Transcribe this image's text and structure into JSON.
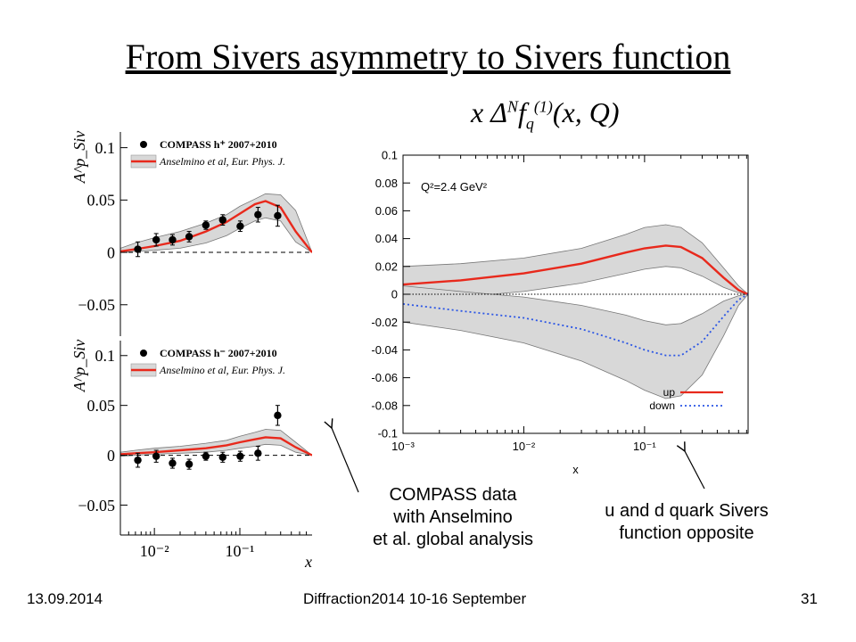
{
  "slide": {
    "title": "From Sivers asymmetry to Sivers function",
    "formula": {
      "lead": "x Δ",
      "sup1": "N",
      "f": "f",
      "sub": "q",
      "sup2": "(1)",
      "args": "(x, Q)"
    },
    "note_left": [
      "COMPASS data",
      "with Anselmino",
      "et al. global analysis"
    ],
    "note_right": [
      "u and d quark Sivers",
      "function opposite"
    ],
    "footer": {
      "date": "13.09.2014",
      "event": "Diffraction2014 10-16 September",
      "page": "31"
    }
  },
  "colors": {
    "theory": "#e8291c",
    "down": "#2a55e5",
    "band": "#d8d8d8"
  },
  "chart_data": [
    {
      "type": "scatter",
      "panel": "top-left",
      "ylabel": "A^p_Siv",
      "xscale": "log",
      "xlim": [
        0.004,
        0.7
      ],
      "ylim": [
        -0.08,
        0.115
      ],
      "yticks": [
        0.1,
        0.05,
        0,
        -0.05
      ],
      "ytick_labels": [
        "0.1",
        "0.05",
        "0",
        "−0.05"
      ],
      "legend": [
        "COMPASS h⁺ 2007+2010",
        "Anselmino et al, Eur. Phys. J."
      ],
      "legend_position": "top",
      "data_points": {
        "x": [
          0.0064,
          0.0105,
          0.0163,
          0.0255,
          0.04,
          0.063,
          0.101,
          0.163,
          0.277
        ],
        "y": [
          0.003,
          0.012,
          0.012,
          0.015,
          0.026,
          0.031,
          0.025,
          0.036,
          0.035
        ],
        "err": [
          0.007,
          0.006,
          0.005,
          0.005,
          0.004,
          0.005,
          0.005,
          0.007,
          0.01
        ]
      },
      "theory_curve": {
        "x": [
          0.004,
          0.006,
          0.01,
          0.02,
          0.04,
          0.07,
          0.1,
          0.15,
          0.2,
          0.3,
          0.45,
          0.7
        ],
        "y": [
          0.001,
          0.003,
          0.006,
          0.011,
          0.02,
          0.029,
          0.037,
          0.046,
          0.049,
          0.043,
          0.02,
          0.0
        ]
      },
      "band": {
        "x": [
          0.004,
          0.006,
          0.01,
          0.02,
          0.04,
          0.07,
          0.1,
          0.15,
          0.2,
          0.3,
          0.45,
          0.7
        ],
        "low": [
          0.0,
          0.001,
          0.002,
          0.004,
          0.009,
          0.016,
          0.023,
          0.03,
          0.033,
          0.03,
          0.01,
          0.0
        ],
        "high": [
          0.004,
          0.009,
          0.014,
          0.02,
          0.028,
          0.036,
          0.044,
          0.051,
          0.056,
          0.055,
          0.04,
          0.0
        ]
      }
    },
    {
      "type": "scatter",
      "panel": "bottom-left",
      "ylabel": "A^p_Siv",
      "xlabel": "x",
      "xscale": "log",
      "xlim": [
        0.004,
        0.7
      ],
      "ylim": [
        -0.08,
        0.115
      ],
      "yticks": [
        0.1,
        0.05,
        0,
        -0.05
      ],
      "ytick_labels": [
        "0.1",
        "0.05",
        "0",
        "−0.05"
      ],
      "xticks": [
        0.01,
        0.1
      ],
      "xtick_labels": [
        "10⁻²",
        "10⁻¹"
      ],
      "legend": [
        "COMPASS h⁻ 2007+2010",
        "Anselmino et al, Eur. Phys. J."
      ],
      "legend_position": "top",
      "data_points": {
        "x": [
          0.0064,
          0.0105,
          0.0163,
          0.0255,
          0.04,
          0.063,
          0.101,
          0.163,
          0.277
        ],
        "y": [
          -0.005,
          -0.001,
          -0.008,
          -0.009,
          -0.001,
          -0.002,
          -0.001,
          0.002,
          0.04
        ],
        "err": [
          0.007,
          0.006,
          0.005,
          0.005,
          0.004,
          0.005,
          0.005,
          0.007,
          0.01
        ]
      },
      "theory_curve": {
        "x": [
          0.004,
          0.006,
          0.01,
          0.02,
          0.04,
          0.07,
          0.1,
          0.15,
          0.2,
          0.3,
          0.45,
          0.7
        ],
        "y": [
          0.001,
          0.002,
          0.003,
          0.005,
          0.007,
          0.01,
          0.013,
          0.016,
          0.018,
          0.017,
          0.008,
          0.0
        ]
      },
      "band": {
        "x": [
          0.004,
          0.006,
          0.01,
          0.02,
          0.04,
          0.07,
          0.1,
          0.15,
          0.2,
          0.3,
          0.45,
          0.7
        ],
        "low": [
          -0.001,
          0.0,
          0.001,
          0.002,
          0.003,
          0.005,
          0.007,
          0.009,
          0.011,
          0.01,
          0.003,
          0.0
        ],
        "high": [
          0.003,
          0.005,
          0.007,
          0.009,
          0.012,
          0.015,
          0.019,
          0.023,
          0.026,
          0.025,
          0.013,
          0.0
        ]
      }
    },
    {
      "type": "line",
      "panel": "right",
      "xlabel": "x",
      "xscale": "log",
      "xlim": [
        0.001,
        0.72
      ],
      "ylim": [
        -0.1,
        0.1
      ],
      "yticks": [
        0.1,
        0.08,
        0.06,
        0.04,
        0.02,
        0,
        -0.02,
        -0.04,
        -0.06,
        -0.08,
        -0.1
      ],
      "ytick_labels": [
        "0.1",
        "0.08",
        "0.06",
        "0.04",
        "0.02",
        "0",
        "-0.02",
        "-0.04",
        "-0.06",
        "-0.08",
        "-0.1"
      ],
      "xticks": [
        0.001,
        0.01,
        0.1
      ],
      "xtick_labels": [
        "10⁻³",
        "10⁻²",
        "10⁻¹"
      ],
      "annotation": "Q²=2.4 GeV²",
      "legend_position": "bottom-right",
      "x": [
        0.001,
        0.003,
        0.01,
        0.03,
        0.07,
        0.1,
        0.15,
        0.2,
        0.3,
        0.45,
        0.6,
        0.72
      ],
      "series": [
        {
          "name": "up",
          "values": [
            0.007,
            0.01,
            0.015,
            0.022,
            0.03,
            0.033,
            0.035,
            0.034,
            0.026,
            0.012,
            0.003,
            0.0
          ],
          "band_low": [
            -0.006,
            -0.002,
            0.002,
            0.008,
            0.015,
            0.018,
            0.02,
            0.019,
            0.013,
            0.005,
            0.001,
            0.0
          ],
          "band_high": [
            0.02,
            0.022,
            0.026,
            0.033,
            0.043,
            0.048,
            0.05,
            0.048,
            0.037,
            0.019,
            0.006,
            0.0
          ]
        },
        {
          "name": "down",
          "values": [
            -0.007,
            -0.012,
            -0.017,
            -0.025,
            -0.035,
            -0.04,
            -0.044,
            -0.044,
            -0.034,
            -0.016,
            -0.004,
            0.0
          ],
          "band_low": [
            -0.02,
            -0.026,
            -0.035,
            -0.048,
            -0.062,
            -0.069,
            -0.075,
            -0.073,
            -0.058,
            -0.03,
            -0.008,
            0.0
          ],
          "band_high": [
            0.006,
            0.002,
            -0.002,
            -0.008,
            -0.015,
            -0.019,
            -0.022,
            -0.021,
            -0.014,
            -0.005,
            -0.001,
            0.0
          ]
        }
      ]
    }
  ]
}
